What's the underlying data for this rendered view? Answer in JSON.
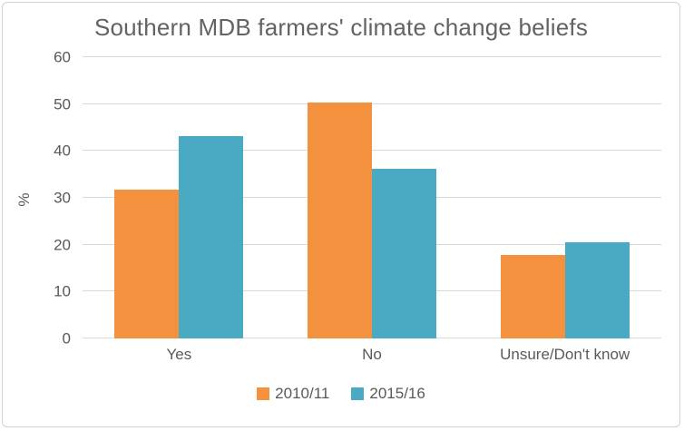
{
  "chart_data": {
    "type": "bar",
    "title": "Southern MDB farmers' climate change beliefs",
    "ylabel": "%",
    "xlabel": "",
    "categories": [
      "Yes",
      "No",
      "Unsure/Don't know"
    ],
    "series": [
      {
        "name": "2010/11",
        "color": "#F4913E",
        "values": [
          31.8,
          50.3,
          17.9
        ]
      },
      {
        "name": "2015/16",
        "color": "#4AA9C3",
        "values": [
          43.2,
          36.2,
          20.6
        ]
      }
    ],
    "ylim": [
      0,
      60
    ],
    "yticks": [
      0,
      10,
      20,
      30,
      40,
      50,
      60
    ],
    "grid": true,
    "legend_position": "bottom",
    "colors": {
      "text": "#595959",
      "title_text": "#636363",
      "gridline": "#D9D9D9",
      "frame_border": "#D2D2D2",
      "background": "#FFFFFF"
    }
  }
}
